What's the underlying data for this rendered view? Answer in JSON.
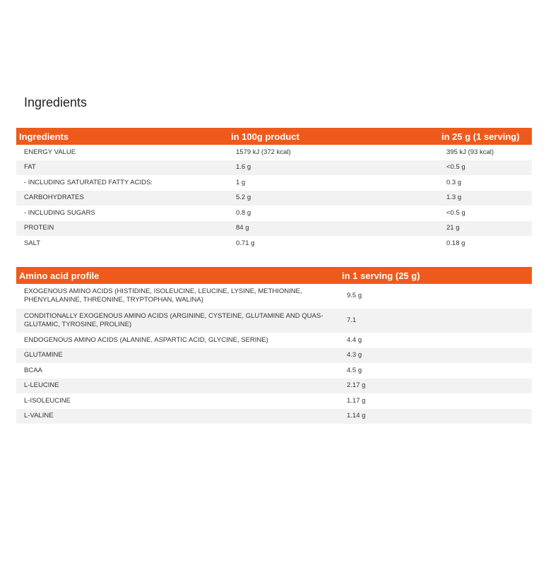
{
  "title": "Ingredients",
  "nutrition_table": {
    "headers": [
      "Ingredients",
      "in 100g product",
      "in 25 g (1 serving)"
    ],
    "rows": [
      [
        "ENERGY VALUE",
        "1579 kJ (372 kcal)",
        "395 kJ (93 kcal)"
      ],
      [
        "FAT",
        "1.6 g",
        "<0.5 g"
      ],
      [
        "- INCLUDING SATURATED FATTY ACIDS:",
        "1 g",
        "0.3 g"
      ],
      [
        "CARBOHYDRATES",
        "5.2 g",
        "1.3 g"
      ],
      [
        "- INCLUDING SUGARS",
        "0.8 g",
        "<0.5 g"
      ],
      [
        "PROTEIN",
        "84 g",
        "21 g"
      ],
      [
        "SALT",
        "0.71 g",
        "0.18 g"
      ]
    ]
  },
  "amino_table": {
    "headers": [
      "Amino acid profile",
      "in 1 serving (25 g)"
    ],
    "rows": [
      [
        "EXOGENOUS AMINO ACIDS (HISTIDINE, ISOLEUCINE, LEUCINE, LYSINE, METHIONINE, PHENYLALANINE, THREONINE, TRYPTOPHAN, WALINA)",
        "9.5 g"
      ],
      [
        "CONDITIONALLY EXOGENOUS AMINO ACIDS (ARGININE, CYSTEINE, GLUTAMINE AND QUAS-GLUTAMIC, TYROSINE, PROLINE)",
        "7.1"
      ],
      [
        "ENDOGENOUS AMINO ACIDS (ALANINE, ASPARTIC ACID, GLYCINE, SERINE)",
        "4.4 g"
      ],
      [
        "GLUTAMINE",
        "4.3 g"
      ],
      [
        "BCAA",
        "4.5 g"
      ],
      [
        "L-LEUCINE",
        "2.17 g"
      ],
      [
        "L-ISOLEUCINE",
        "1.17 g"
      ],
      [
        "L-VALINE",
        "1.14 g"
      ]
    ]
  },
  "colors": {
    "header_bg": "#ee5a1c",
    "alt_row_bg": "#f2f2f2"
  }
}
